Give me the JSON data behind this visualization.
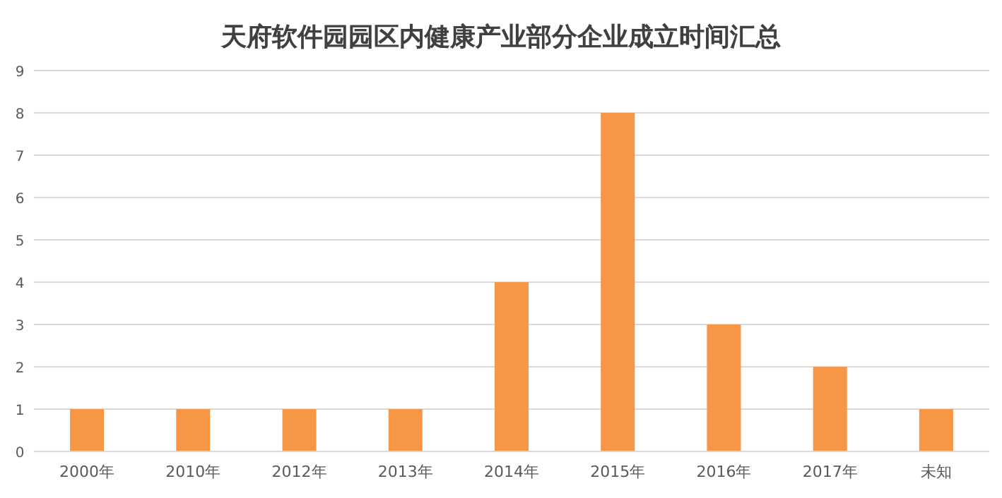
{
  "chart_data": {
    "type": "bar",
    "title": "天府软件园园区内健康产业部分企业成立时间汇总",
    "categories": [
      "2000年",
      "2010年",
      "2012年",
      "2013年",
      "2014年",
      "2015年",
      "2016年",
      "2017年",
      "未知"
    ],
    "values": [
      1,
      1,
      1,
      1,
      4,
      8,
      3,
      2,
      1
    ],
    "color": "#f79646",
    "ylim": [
      0,
      9
    ],
    "yticks": [
      0,
      1,
      2,
      3,
      4,
      5,
      6,
      7,
      8,
      9
    ],
    "grid": "y"
  }
}
